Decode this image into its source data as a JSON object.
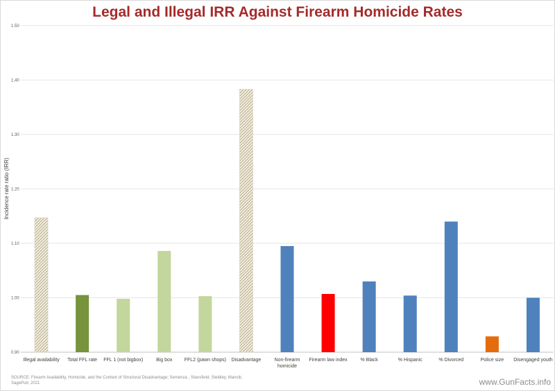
{
  "title": "Legal and Illegal IRR Against Firearm Homicide Rates",
  "source_note": "SOURCE: Firearm Availability, Homicide, and the Context of Structural Disadvantage; Semenza , Stansfield, Steidley, Mancik; SagePub; 2021",
  "watermark": "www.GunFacts.info",
  "chart_data": {
    "type": "bar",
    "title": "Legal and Illegal IRR Against Firearm Homicide Rates",
    "xlabel": "",
    "ylabel": "Incidence rate ratio (IRR)",
    "ylim": [
      0.9,
      1.5
    ],
    "yticks": [
      "0.90",
      "1.00",
      "1.10",
      "1.20",
      "1.30",
      "1.40",
      "1.50"
    ],
    "grid": true,
    "legend": "none",
    "categories": [
      "Illegal availability",
      "Total FFL rate",
      "FFL 1 (not bigbox)",
      "Big box",
      "FFL2 (pawn shops)",
      "Disadvantage",
      "Non-firearm homicide",
      "Firearm law index",
      "% Black",
      "% Hispanic",
      "% Divorced",
      "Police size",
      "Disengaged youth"
    ],
    "values": [
      1.147,
      1.005,
      0.998,
      1.086,
      1.003,
      1.383,
      1.095,
      1.007,
      1.03,
      1.004,
      1.14,
      0.929,
      1.0
    ],
    "bar_styles": [
      "hatched",
      "solid",
      "solid",
      "solid",
      "solid",
      "hatched",
      "solid",
      "solid",
      "solid",
      "solid",
      "solid",
      "solid",
      "solid"
    ],
    "bar_colors": [
      "#a69a74",
      "#77933c",
      "#c3d69b",
      "#c3d69b",
      "#c3d69b",
      "#a69a74",
      "#4f81bd",
      "#ff0000",
      "#4f81bd",
      "#4f81bd",
      "#4f81bd",
      "#e46c0a",
      "#4f81bd"
    ]
  }
}
